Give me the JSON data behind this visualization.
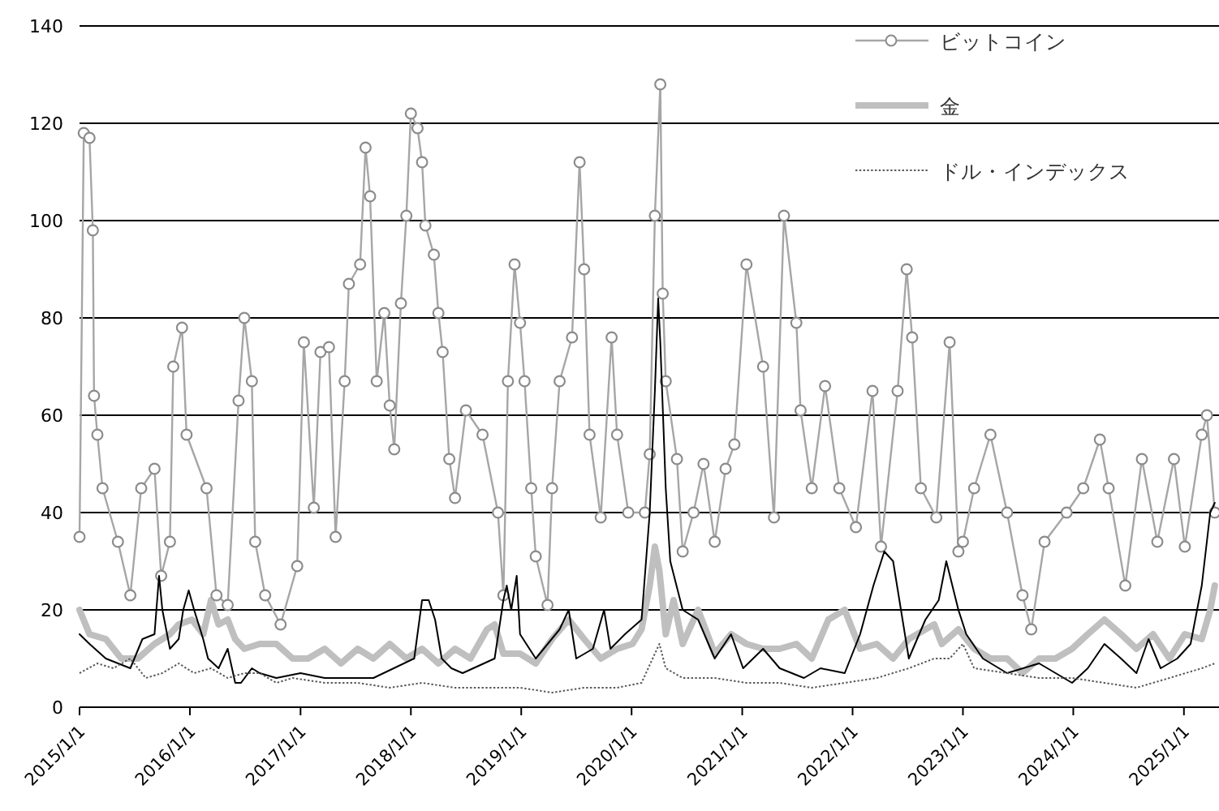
{
  "chart_data": {
    "type": "line",
    "xlim": [
      "2015-01-01",
      "2025-04-27"
    ],
    "ylim": [
      0,
      140
    ],
    "xticks": [
      {
        "value": "2015-01-01",
        "label": "2015/1/1"
      },
      {
        "value": "2016-01-01",
        "label": "2016/1/1"
      },
      {
        "value": "2017-01-01",
        "label": "2017/1/1"
      },
      {
        "value": "2018-01-01",
        "label": "2018/1/1"
      },
      {
        "value": "2019-01-01",
        "label": "2019/1/1"
      },
      {
        "value": "2020-01-01",
        "label": "2020/1/1"
      },
      {
        "value": "2021-01-01",
        "label": "2021/1/1"
      },
      {
        "value": "2022-01-01",
        "label": "2022/1/1"
      },
      {
        "value": "2023-01-01",
        "label": "2023/1/1"
      },
      {
        "value": "2024-01-01",
        "label": "2024/1/1"
      },
      {
        "value": "2025-01-01",
        "label": "2025/1/1"
      }
    ],
    "yticks": [
      0,
      20,
      40,
      60,
      80,
      100,
      120,
      140
    ],
    "grid": "y",
    "legend": "top right",
    "series": [
      {
        "name": "ビットコイン",
        "color": "#a6a6a6",
        "marker": "circle",
        "line_style": "solid",
        "x": [
          "2015-01-01",
          "2015-01-15",
          "2015-02-03",
          "2015-02-14",
          "2015-02-18",
          "2015-03-01",
          "2015-03-18",
          "2015-05-08",
          "2015-06-18",
          "2015-07-24",
          "2015-09-06",
          "2015-09-28",
          "2015-10-27",
          "2015-11-07",
          "2015-12-06",
          "2015-12-21",
          "2016-02-25",
          "2016-03-29",
          "2016-05-05",
          "2016-06-10",
          "2016-06-29",
          "2016-07-24",
          "2016-08-04",
          "2016-09-06",
          "2016-10-27",
          "2016-12-21",
          "2017-01-12",
          "2017-02-14",
          "2017-03-08",
          "2017-04-05",
          "2017-04-27",
          "2017-05-27",
          "2017-06-10",
          "2017-07-17",
          "2017-08-04",
          "2017-08-19",
          "2017-09-10",
          "2017-10-05",
          "2017-10-23",
          "2017-11-07",
          "2017-11-29",
          "2017-12-17",
          "2018-01-01",
          "2018-01-23",
          "2018-02-07",
          "2018-02-18",
          "2018-03-18",
          "2018-04-02",
          "2018-04-16",
          "2018-05-08",
          "2018-05-27",
          "2018-07-02",
          "2018-08-26",
          "2018-10-16",
          "2018-11-03",
          "2018-11-18",
          "2018-12-10",
          "2018-12-28",
          "2019-01-12",
          "2019-02-03",
          "2019-02-18",
          "2019-03-29",
          "2019-04-13",
          "2019-05-08",
          "2019-06-18",
          "2019-07-13",
          "2019-07-28",
          "2019-08-15",
          "2019-09-21",
          "2019-10-27",
          "2019-11-14",
          "2019-12-21",
          "2020-02-14",
          "2020-03-01",
          "2020-03-18",
          "2020-04-05",
          "2020-04-13",
          "2020-04-23",
          "2020-05-30",
          "2020-06-18",
          "2020-07-24",
          "2020-08-26",
          "2020-10-02",
          "2020-11-07",
          "2020-12-06",
          "2021-01-15",
          "2021-03-11",
          "2021-04-16",
          "2021-05-19",
          "2021-06-29",
          "2021-07-13",
          "2021-08-19",
          "2021-10-02",
          "2021-11-18",
          "2022-01-12",
          "2022-03-08",
          "2022-04-05",
          "2022-05-30",
          "2022-06-29",
          "2022-07-17",
          "2022-08-15",
          "2022-10-05",
          "2022-11-18",
          "2022-12-17",
          "2023-01-01",
          "2023-02-07",
          "2023-04-02",
          "2023-05-27",
          "2023-07-17",
          "2023-08-15",
          "2023-09-28",
          "2023-12-10",
          "2024-02-03",
          "2024-03-29",
          "2024-04-27",
          "2024-06-21",
          "2024-08-15",
          "2024-10-05",
          "2024-11-29",
          "2025-01-04",
          "2025-03-01",
          "2025-03-18",
          "2025-04-13"
        ],
        "values": [
          35,
          118,
          117,
          98,
          64,
          56,
          45,
          34,
          23,
          45,
          49,
          27,
          34,
          70,
          78,
          56,
          45,
          23,
          21,
          63,
          80,
          67,
          34,
          23,
          17,
          29,
          75,
          41,
          73,
          74,
          35,
          67,
          87,
          91,
          115,
          105,
          67,
          81,
          62,
          53,
          83,
          101,
          122,
          119,
          112,
          99,
          93,
          81,
          73,
          51,
          43,
          61,
          56,
          40,
          23,
          67,
          91,
          79,
          67,
          45,
          31,
          21,
          45,
          67,
          76,
          112,
          90,
          56,
          39,
          76,
          56,
          40,
          40,
          52,
          101,
          128,
          85,
          67,
          51,
          32,
          40,
          50,
          34,
          49,
          54,
          91,
          70,
          39,
          101,
          79,
          61,
          45,
          66,
          45,
          37,
          65,
          33,
          65,
          90,
          76,
          45,
          39,
          75,
          32,
          34,
          45,
          56,
          40,
          23,
          16,
          34,
          40,
          45,
          55,
          45,
          25,
          51,
          34,
          51,
          33,
          56,
          60,
          40
        ]
      },
      {
        "color": "#000000",
        "marker": "none",
        "line_style": "solid",
        "x": [
          "2015-01-01",
          "2015-02-03",
          "2015-03-29",
          "2015-06-18",
          "2015-07-28",
          "2015-09-06",
          "2015-09-21",
          "2015-10-02",
          "2015-10-27",
          "2015-11-25",
          "2015-12-10",
          "2015-12-28",
          "2016-01-15",
          "2016-02-14",
          "2016-03-01",
          "2016-04-05",
          "2016-05-05",
          "2016-05-30",
          "2016-06-18",
          "2016-07-24",
          "2016-08-19",
          "2016-10-13",
          "2017-01-01",
          "2017-03-22",
          "2017-08-30",
          "2018-01-12",
          "2018-02-07",
          "2018-03-01",
          "2018-03-22",
          "2018-04-13",
          "2018-05-15",
          "2018-06-21",
          "2018-10-05",
          "2018-11-03",
          "2018-11-14",
          "2018-11-29",
          "2018-12-17",
          "2018-12-28",
          "2019-02-18",
          "2019-05-08",
          "2019-06-07",
          "2019-07-02",
          "2019-08-26",
          "2019-10-02",
          "2019-10-23",
          "2019-12-10",
          "2020-02-03",
          "2020-03-01",
          "2020-03-18",
          "2020-03-29",
          "2020-04-05",
          "2020-04-23",
          "2020-05-08",
          "2020-06-18",
          "2020-08-08",
          "2020-10-02",
          "2020-11-25",
          "2021-01-04",
          "2021-03-11",
          "2021-05-05",
          "2021-07-24",
          "2021-09-17",
          "2021-12-06",
          "2022-01-26",
          "2022-03-11",
          "2022-04-16",
          "2022-05-15",
          "2022-06-10",
          "2022-07-06",
          "2022-08-30",
          "2022-10-13",
          "2022-11-07",
          "2022-12-17",
          "2023-01-12",
          "2023-03-08",
          "2023-05-27",
          "2023-09-10",
          "2023-12-28",
          "2024-02-18",
          "2024-04-13",
          "2024-06-07",
          "2024-07-28",
          "2024-09-06",
          "2024-10-16",
          "2024-12-10",
          "2025-01-23",
          "2025-03-01",
          "2025-03-29",
          "2025-04-13"
        ],
        "values": [
          15,
          13,
          10,
          8,
          14,
          15,
          27,
          20,
          12,
          14,
          20,
          24,
          20,
          14,
          10,
          8,
          12,
          5,
          5,
          8,
          7,
          6,
          7,
          6,
          6,
          10,
          22,
          22,
          18,
          10,
          8,
          7,
          10,
          22,
          25,
          20,
          27,
          15,
          10,
          16,
          20,
          10,
          12,
          20,
          12,
          15,
          18,
          40,
          65,
          84,
          75,
          45,
          30,
          20,
          18,
          10,
          15,
          8,
          12,
          8,
          6,
          8,
          7,
          15,
          25,
          32,
          30,
          20,
          10,
          18,
          22,
          30,
          20,
          15,
          10,
          7,
          9,
          5,
          8,
          13,
          10,
          7,
          14,
          8,
          10,
          13,
          25,
          40,
          42
        ]
      },
      {
        "name": "金",
        "color": "#bfbfbf",
        "marker": "none",
        "line_style": "solid",
        "x": [
          "2015-01-01",
          "2015-02-03",
          "2015-03-29",
          "2015-05-19",
          "2015-07-13",
          "2015-09-06",
          "2015-10-27",
          "2015-11-25",
          "2016-01-08",
          "2016-02-14",
          "2016-03-11",
          "2016-04-05",
          "2016-05-05",
          "2016-05-30",
          "2016-06-29",
          "2016-08-19",
          "2016-10-13",
          "2016-12-06",
          "2017-01-26",
          "2017-03-22",
          "2017-05-15",
          "2017-07-09",
          "2017-08-30",
          "2017-10-23",
          "2017-12-17",
          "2018-02-07",
          "2018-04-02",
          "2018-05-27",
          "2018-07-17",
          "2018-09-10",
          "2018-10-05",
          "2018-11-03",
          "2018-12-28",
          "2019-02-18",
          "2019-04-13",
          "2019-06-07",
          "2019-07-28",
          "2019-09-21",
          "2019-11-14",
          "2020-01-04",
          "2020-02-03",
          "2020-03-01",
          "2020-03-18",
          "2020-04-02",
          "2020-04-23",
          "2020-05-19",
          "2020-06-18",
          "2020-08-08",
          "2020-10-02",
          "2020-11-25",
          "2021-01-15",
          "2021-03-11",
          "2021-05-05",
          "2021-06-29",
          "2021-08-19",
          "2021-10-13",
          "2021-12-06",
          "2022-01-26",
          "2022-03-22",
          "2022-05-15",
          "2022-07-06",
          "2022-08-30",
          "2022-09-28",
          "2022-10-23",
          "2022-12-17",
          "2023-02-07",
          "2023-04-02",
          "2023-05-27",
          "2023-07-17",
          "2023-09-10",
          "2023-11-03",
          "2023-12-28",
          "2024-02-18",
          "2024-04-13",
          "2024-06-07",
          "2024-07-28",
          "2024-09-21",
          "2024-11-14",
          "2025-01-04",
          "2025-03-01",
          "2025-03-29",
          "2025-04-13"
        ],
        "values": [
          20,
          15,
          14,
          10,
          10,
          13,
          15,
          17,
          18,
          15,
          22,
          17,
          18,
          14,
          12,
          13,
          13,
          10,
          10,
          12,
          9,
          12,
          10,
          13,
          10,
          12,
          9,
          12,
          10,
          16,
          17,
          11,
          11,
          9,
          14,
          18,
          14,
          10,
          12,
          13,
          16,
          25,
          33,
          28,
          15,
          22,
          13,
          20,
          11,
          15,
          13,
          12,
          12,
          13,
          10,
          18,
          20,
          12,
          13,
          10,
          14,
          16,
          17,
          13,
          16,
          12,
          10,
          10,
          7,
          10,
          10,
          12,
          15,
          18,
          15,
          12,
          15,
          10,
          15,
          14,
          20,
          25
        ]
      },
      {
        "name": "ドル・インデックス",
        "color": "#595959",
        "marker": "none",
        "line_style": "dotted",
        "x": [
          "2015-01-01",
          "2015-03-01",
          "2015-04-23",
          "2015-06-18",
          "2015-08-08",
          "2015-10-02",
          "2015-11-25",
          "2016-01-15",
          "2016-03-11",
          "2016-05-05",
          "2016-06-29",
          "2016-08-19",
          "2016-10-13",
          "2016-12-06",
          "2017-03-22",
          "2017-07-09",
          "2017-10-23",
          "2018-02-07",
          "2018-05-27",
          "2018-09-10",
          "2018-12-28",
          "2019-04-13",
          "2019-07-28",
          "2019-11-14",
          "2020-02-03",
          "2020-03-18",
          "2020-04-02",
          "2020-04-23",
          "2020-06-18",
          "2020-10-02",
          "2021-01-15",
          "2021-05-05",
          "2021-08-19",
          "2021-12-06",
          "2022-03-22",
          "2022-07-06",
          "2022-09-28",
          "2022-11-18",
          "2023-01-01",
          "2023-02-07",
          "2023-05-27",
          "2023-09-10",
          "2023-12-28",
          "2024-04-13",
          "2024-07-28",
          "2024-11-14",
          "2025-03-01",
          "2025-04-13"
        ],
        "values": [
          7,
          9,
          8,
          10,
          6,
          7,
          9,
          7,
          8,
          6,
          7,
          7,
          5,
          6,
          5,
          5,
          4,
          5,
          4,
          4,
          4,
          3,
          4,
          4,
          5,
          11,
          13,
          8,
          6,
          6,
          5,
          5,
          4,
          5,
          6,
          8,
          10,
          10,
          13,
          8,
          7,
          6,
          6,
          5,
          4,
          6,
          8,
          9
        ]
      }
    ]
  }
}
